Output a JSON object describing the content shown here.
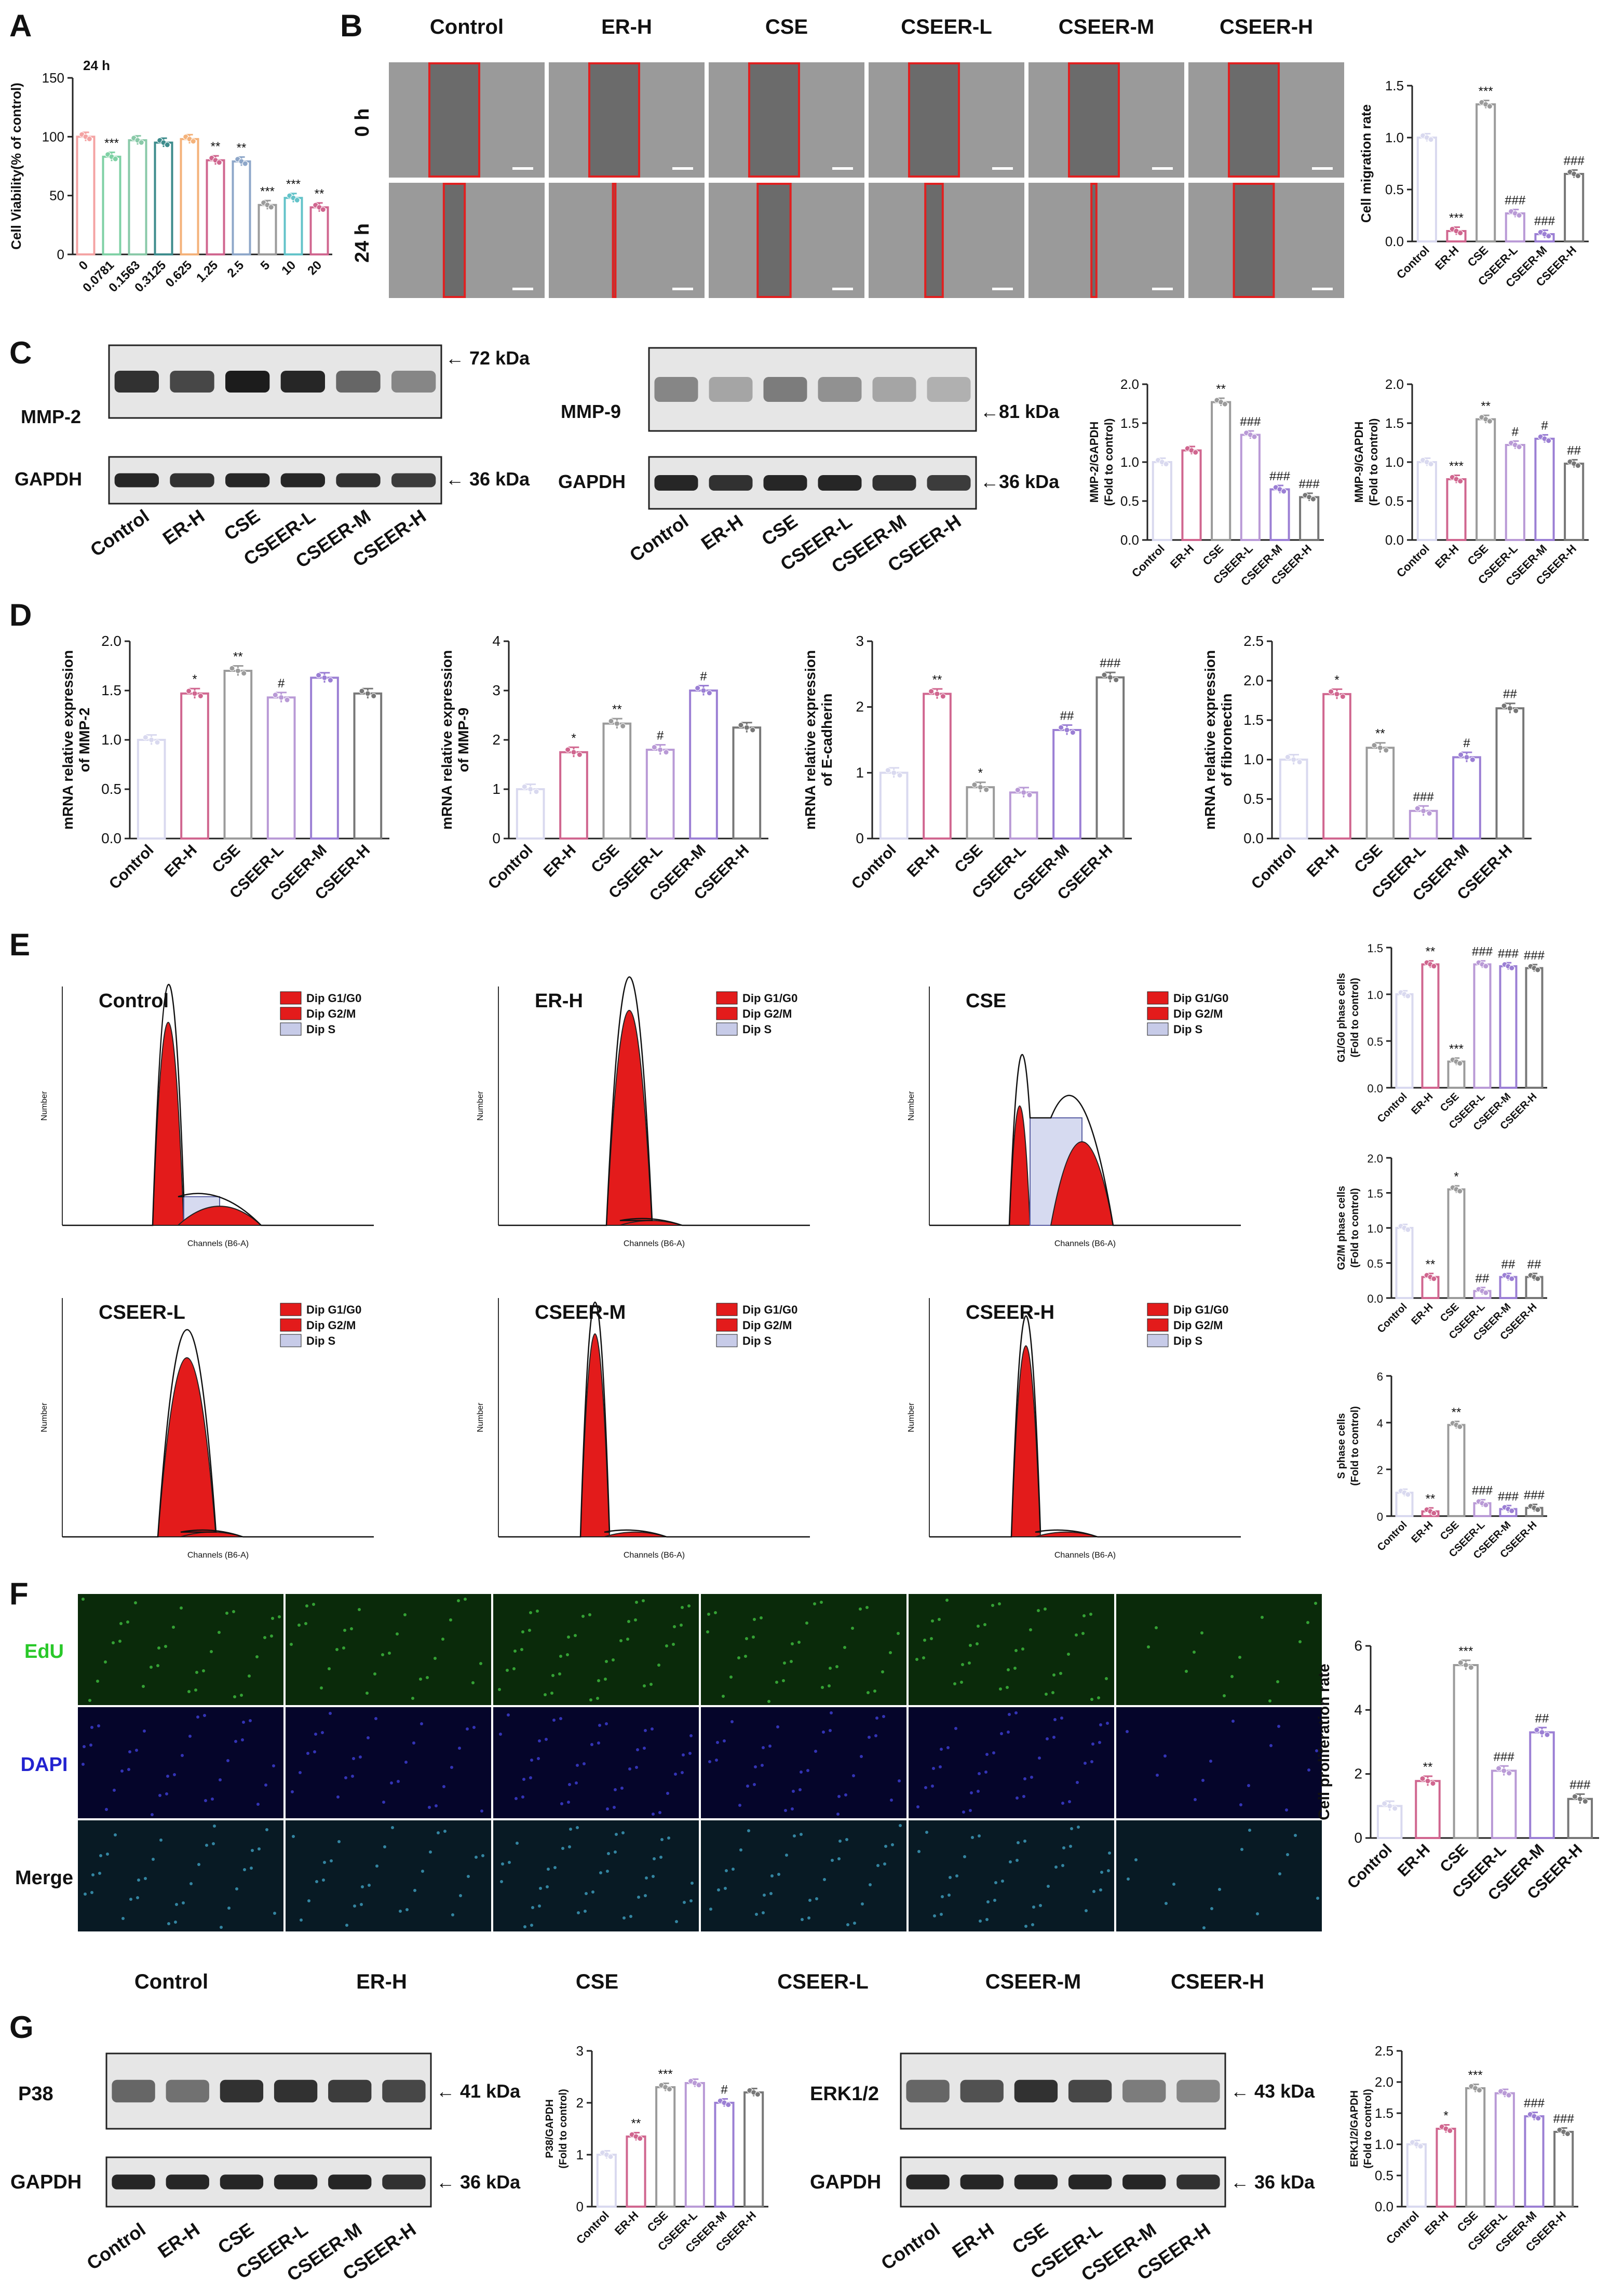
{
  "panel_letters": [
    "A",
    "B",
    "C",
    "D",
    "E",
    "F",
    "G"
  ],
  "groups": [
    "Control",
    "ER-H",
    "CSE",
    "CSEER-L",
    "CSEER-M",
    "CSEER-H"
  ],
  "colors": {
    "control": "#d9d9ef",
    "erh": "#d0668f",
    "cse": "#9b9b9b",
    "cseer_l": "#b99ad6",
    "cseer_m": "#9b7fd4",
    "cseer_h": "#777777",
    "outline": "#e02020",
    "red_fill": "#e31b1b",
    "bar_border": "#333333"
  },
  "panel_A": {
    "time_label": "24 h",
    "ylabel": "Cell Viability(% of control)",
    "categories": [
      "0",
      "0.0781",
      "0.1563",
      "0.3125",
      "0.625",
      "1.25",
      "2.5",
      "5",
      "10",
      "20"
    ],
    "values": [
      100,
      83,
      97,
      95,
      98,
      80,
      79,
      42,
      48,
      40
    ],
    "sig": [
      "",
      "***",
      "",
      "",
      "",
      "**",
      "**",
      "***",
      "***",
      "**"
    ],
    "yticks": [
      "0",
      "50",
      "100",
      "150"
    ]
  },
  "panel_B": {
    "row_labels": [
      "0 h",
      "24 h"
    ],
    "chart": {
      "ylabel": "Cell migration rate",
      "values": [
        1.0,
        0.1,
        1.32,
        0.27,
        0.07,
        0.65
      ],
      "sig": [
        "",
        "***",
        "***",
        "###",
        "###",
        "###"
      ],
      "yticks": [
        "0.0",
        "0.5",
        "1.0",
        "1.5"
      ]
    }
  },
  "panel_C": {
    "mmp2_label": "MMP-2",
    "mmp9_label": "MMP-9",
    "gapdh_label": "GAPDH",
    "mmp2_kda": "← 72 kDa",
    "mmp9_kda": "←81 kDa",
    "gapdh_kda": "← 36 kDa",
    "gapdh_kda2": "←36 kDa",
    "chart1": {
      "ylabel": "MMP-2/GAPDH (Fold to control)",
      "values": [
        1.0,
        1.15,
        1.77,
        1.35,
        0.65,
        0.55
      ],
      "sig": [
        "",
        "",
        "**",
        "###",
        "###",
        "###"
      ],
      "yticks": [
        "0.0",
        "0.5",
        "1.0",
        "1.5",
        "2.0"
      ]
    },
    "chart2": {
      "ylabel": "MMP-9/GAPDH (Fold to control)",
      "values": [
        1.0,
        0.78,
        1.55,
        1.22,
        1.3,
        0.98
      ],
      "sig": [
        "",
        "***",
        "**",
        "#",
        "#",
        "##"
      ],
      "yticks": [
        "0.0",
        "0.5",
        "1.0",
        "1.5",
        "2.0"
      ]
    }
  },
  "panel_D": {
    "charts": [
      {
        "ylabel": "mRNA relative expression of MMP-2",
        "values": [
          1.0,
          1.47,
          1.7,
          1.43,
          1.63,
          1.47
        ],
        "sig": [
          "",
          "*",
          "**",
          "#",
          "",
          ""
        ],
        "yticks": [
          "0.0",
          "0.5",
          "1.0",
          "1.5",
          "2.0"
        ],
        "ymax": 2.0
      },
      {
        "ylabel": "mRNA relative expression of MMP-9",
        "values": [
          1.0,
          1.75,
          2.33,
          1.8,
          3.0,
          2.25
        ],
        "sig": [
          "",
          "*",
          "**",
          "#",
          "#",
          ""
        ],
        "yticks": [
          "0",
          "1",
          "2",
          "3",
          "4"
        ],
        "ymax": 4.0
      },
      {
        "ylabel": "mRNA relative expression of E-cadherin",
        "values": [
          1.0,
          2.2,
          0.78,
          0.7,
          1.65,
          2.45
        ],
        "sig": [
          "",
          "**",
          "*",
          "",
          "##",
          "###"
        ],
        "yticks": [
          "0",
          "1",
          "2",
          "3"
        ],
        "ymax": 3.0
      },
      {
        "ylabel": "mRNA relative expression of fibronectin",
        "values": [
          1.0,
          1.83,
          1.15,
          0.35,
          1.03,
          1.65
        ],
        "sig": [
          "",
          "*",
          "**",
          "###",
          "#",
          "##"
        ],
        "yticks": [
          "0.0",
          "0.5",
          "1.0",
          "1.5",
          "2.0",
          "2.5"
        ],
        "ymax": 2.5
      }
    ]
  },
  "panel_E": {
    "legend": [
      "Dip G1/G0",
      "Dip G2/M",
      "Dip S"
    ],
    "xaxis_label": "Channels (B6-A)",
    "yaxis_label": "Number",
    "histograms": [
      "Control",
      "ER-H",
      "CSE",
      "CSEER-L",
      "CSEER-M",
      "CSEER-H"
    ],
    "charts": [
      {
        "ylabel": "G1/G0 phase cells (Fold to control)",
        "values": [
          1.0,
          1.32,
          0.28,
          1.32,
          1.3,
          1.28
        ],
        "sig": [
          "",
          "**",
          "***",
          "###",
          "###",
          "###"
        ],
        "yticks": [
          "0.0",
          "0.5",
          "1.0",
          "1.5"
        ],
        "ymax": 1.5
      },
      {
        "ylabel": "G2/M phase cells (Fold to control)",
        "values": [
          1.0,
          0.3,
          1.55,
          0.1,
          0.3,
          0.3
        ],
        "sig": [
          "",
          "**",
          "*",
          "##",
          "##",
          "##"
        ],
        "yticks": [
          "0.0",
          "0.5",
          "1.0",
          "1.5",
          "2.0"
        ],
        "ymax": 2.0
      },
      {
        "ylabel": "S phase cells (Fold to control)",
        "values": [
          1.0,
          0.2,
          3.9,
          0.55,
          0.3,
          0.35
        ],
        "sig": [
          "",
          "**",
          "**",
          "###",
          "###",
          "###"
        ],
        "yticks": [
          "0",
          "2",
          "4",
          "6"
        ],
        "ymax": 6
      }
    ]
  },
  "panel_F": {
    "row_labels": [
      "EdU",
      "DAPI",
      "Merge"
    ],
    "chart": {
      "ylabel": "Cell proliferation rate",
      "values": [
        1.0,
        1.78,
        5.4,
        2.1,
        3.3,
        1.22
      ],
      "sig": [
        "",
        "**",
        "***",
        "###",
        "##",
        "###"
      ],
      "yticks": [
        "0",
        "2",
        "4",
        "6"
      ],
      "ymax": 6
    }
  },
  "panel_G": {
    "p38_label": "P38",
    "erk_label": "ERK1/2",
    "gapdh_label": "GAPDH",
    "p38_kda": "← 41 kDa",
    "erk_kda": "← 43 kDa",
    "gapdh_kda": "← 36 kDa",
    "chart1": {
      "ylabel": "P38/GAPDH (Fold to control)",
      "values": [
        1.0,
        1.35,
        2.3,
        2.38,
        2.0,
        2.2
      ],
      "sig": [
        "",
        "**",
        "***",
        "",
        "#",
        ""
      ],
      "yticks": [
        "0",
        "1",
        "2",
        "3"
      ],
      "ymax": 3
    },
    "chart2": {
      "ylabel": "ERK1/2/GAPDH (Fold to control)",
      "values": [
        1.0,
        1.25,
        1.9,
        1.82,
        1.45,
        1.2
      ],
      "sig": [
        "",
        "*",
        "***",
        "",
        "###",
        "###"
      ],
      "yticks": [
        "0.0",
        "0.5",
        "1.0",
        "1.5",
        "2.0",
        "2.5"
      ],
      "ymax": 2.5
    }
  },
  "chart_data": [
    {
      "type": "bar",
      "categories": [
        "0",
        "0.0781",
        "0.1563",
        "0.3125",
        "0.625",
        "1.25",
        "2.5",
        "5",
        "10",
        "20"
      ],
      "values": [
        100,
        83,
        97,
        95,
        98,
        80,
        79,
        42,
        48,
        40
      ],
      "ylabel": "Cell Viability(% of control)",
      "ylim": [
        0,
        150
      ]
    },
    {
      "type": "bar",
      "categories": [
        "Control",
        "ER-H",
        "CSE",
        "CSEER-L",
        "CSEER-M",
        "CSEER-H"
      ],
      "values": [
        1.0,
        0.1,
        1.32,
        0.27,
        0.07,
        0.65
      ],
      "ylabel": "Cell migration rate",
      "ylim": [
        0,
        1.5
      ]
    },
    {
      "type": "bar",
      "categories": [
        "Control",
        "ER-H",
        "CSE",
        "CSEER-L",
        "CSEER-M",
        "CSEER-H"
      ],
      "values": [
        1.0,
        1.15,
        1.77,
        1.35,
        0.65,
        0.55
      ],
      "ylabel": "MMP-2/GAPDH (Fold to control)",
      "ylim": [
        0,
        2.0
      ]
    },
    {
      "type": "bar",
      "categories": [
        "Control",
        "ER-H",
        "CSE",
        "CSEER-L",
        "CSEER-M",
        "CSEER-H"
      ],
      "values": [
        1.0,
        0.78,
        1.55,
        1.22,
        1.3,
        0.98
      ],
      "ylabel": "MMP-9/GAPDH (Fold to control)",
      "ylim": [
        0,
        2.0
      ]
    },
    {
      "type": "bar",
      "categories": [
        "Control",
        "ER-H",
        "CSE",
        "CSEER-L",
        "CSEER-M",
        "CSEER-H"
      ],
      "values": [
        1.0,
        1.47,
        1.7,
        1.43,
        1.63,
        1.47
      ],
      "ylabel": "mRNA relative expression of MMP-2",
      "ylim": [
        0,
        2.0
      ]
    },
    {
      "type": "bar",
      "categories": [
        "Control",
        "ER-H",
        "CSE",
        "CSEER-L",
        "CSEER-M",
        "CSEER-H"
      ],
      "values": [
        1.0,
        1.75,
        2.33,
        1.8,
        3.0,
        2.25
      ],
      "ylabel": "mRNA relative expression of MMP-9",
      "ylim": [
        0,
        4
      ]
    },
    {
      "type": "bar",
      "categories": [
        "Control",
        "ER-H",
        "CSE",
        "CSEER-L",
        "CSEER-M",
        "CSEER-H"
      ],
      "values": [
        1.0,
        2.2,
        0.78,
        0.7,
        1.65,
        2.45
      ],
      "ylabel": "mRNA relative expression of E-cadherin",
      "ylim": [
        0,
        3
      ]
    },
    {
      "type": "bar",
      "categories": [
        "Control",
        "ER-H",
        "CSE",
        "CSEER-L",
        "CSEER-M",
        "CSEER-H"
      ],
      "values": [
        1.0,
        1.83,
        1.15,
        0.35,
        1.03,
        1.65
      ],
      "ylabel": "mRNA relative expression of fibronectin",
      "ylim": [
        0,
        2.5
      ]
    },
    {
      "type": "bar",
      "categories": [
        "Control",
        "ER-H",
        "CSE",
        "CSEER-L",
        "CSEER-M",
        "CSEER-H"
      ],
      "values": [
        1.0,
        1.32,
        0.28,
        1.32,
        1.3,
        1.28
      ],
      "ylabel": "G1/G0 phase cells (Fold to control)",
      "ylim": [
        0,
        1.5
      ]
    },
    {
      "type": "bar",
      "categories": [
        "Control",
        "ER-H",
        "CSE",
        "CSEER-L",
        "CSEER-M",
        "CSEER-H"
      ],
      "values": [
        1.0,
        0.3,
        1.55,
        0.1,
        0.3,
        0.3
      ],
      "ylabel": "G2/M phase cells (Fold to control)",
      "ylim": [
        0,
        2.0
      ]
    },
    {
      "type": "bar",
      "categories": [
        "Control",
        "ER-H",
        "CSE",
        "CSEER-L",
        "CSEER-M",
        "CSEER-H"
      ],
      "values": [
        1.0,
        0.2,
        3.9,
        0.55,
        0.3,
        0.35
      ],
      "ylabel": "S phase cells (Fold to control)",
      "ylim": [
        0,
        6
      ]
    },
    {
      "type": "bar",
      "categories": [
        "Control",
        "ER-H",
        "CSE",
        "CSEER-L",
        "CSEER-M",
        "CSEER-H"
      ],
      "values": [
        1.0,
        1.78,
        5.4,
        2.1,
        3.3,
        1.22
      ],
      "ylabel": "Cell proliferation rate",
      "ylim": [
        0,
        6
      ]
    },
    {
      "type": "bar",
      "categories": [
        "Control",
        "ER-H",
        "CSE",
        "CSEER-L",
        "CSEER-M",
        "CSEER-H"
      ],
      "values": [
        1.0,
        1.35,
        2.3,
        2.38,
        2.0,
        2.2
      ],
      "ylabel": "P38/GAPDH (Fold to control)",
      "ylim": [
        0,
        3
      ]
    },
    {
      "type": "bar",
      "categories": [
        "Control",
        "ER-H",
        "CSE",
        "CSEER-L",
        "CSEER-M",
        "CSEER-H"
      ],
      "values": [
        1.0,
        1.25,
        1.9,
        1.82,
        1.45,
        1.2
      ],
      "ylabel": "ERK1/2/GAPDH (Fold to control)",
      "ylim": [
        0,
        2.5
      ]
    }
  ]
}
